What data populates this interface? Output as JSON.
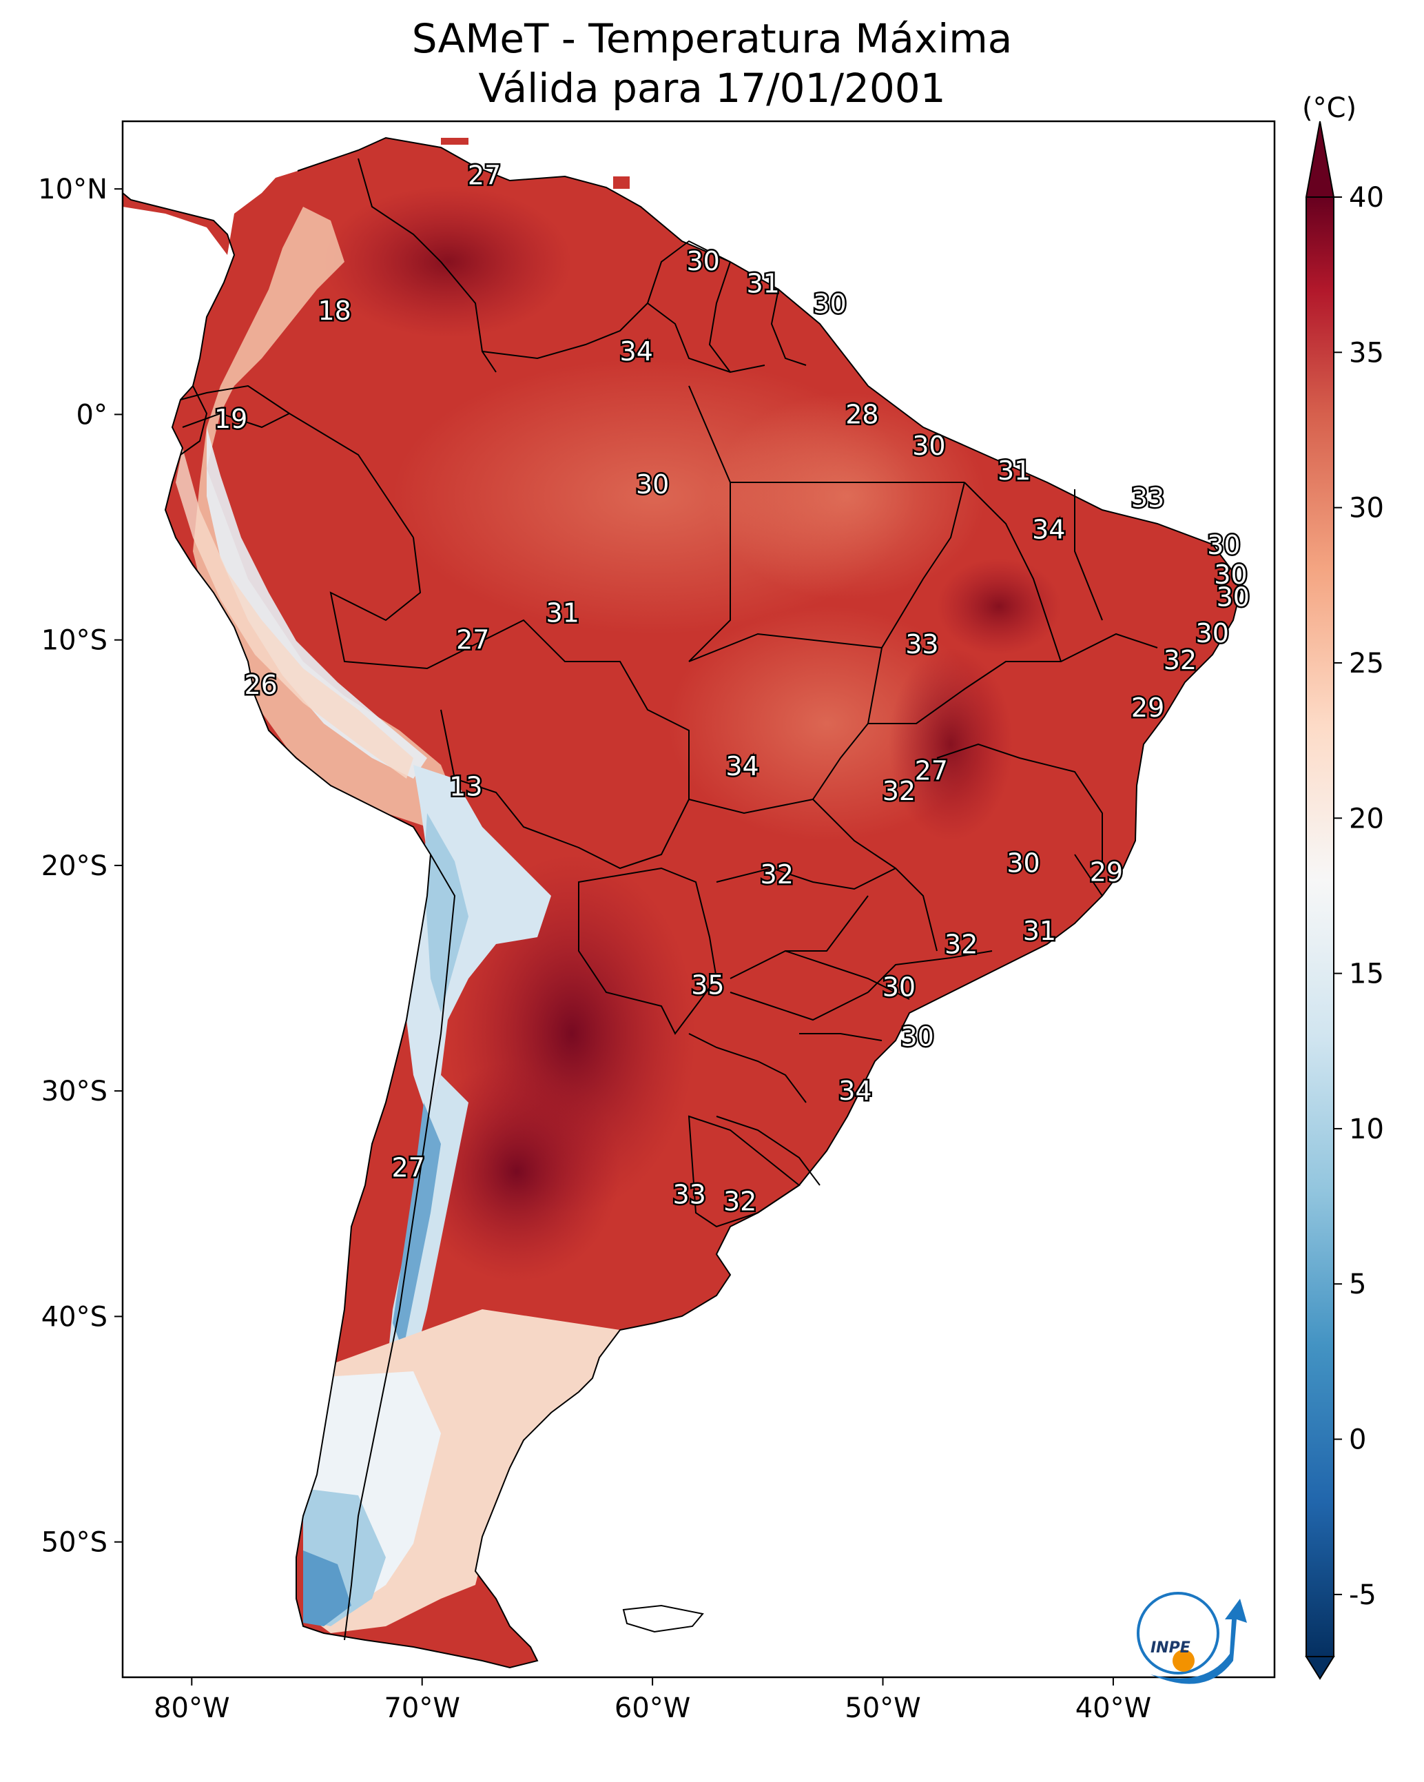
{
  "title": {
    "line1": "SAMeT - Temperatura Máxima",
    "line2": "Válida para 17/01/2001"
  },
  "map": {
    "lon_ticks": [
      "80°W",
      "70°W",
      "60°W",
      "50°W",
      "40°W"
    ],
    "lat_ticks": [
      "10°N",
      "0°",
      "10°S",
      "20°S",
      "30°S",
      "40°S",
      "50°S"
    ],
    "extent": {
      "lon_min": -83,
      "lon_max": -33,
      "lat_min": -56,
      "lat_max": 13
    }
  },
  "colorbar": {
    "unit": "(°C)",
    "ticks": [
      "-5",
      "0",
      "5",
      "10",
      "15",
      "20",
      "25",
      "30",
      "35",
      "40"
    ],
    "vmin": -7,
    "vmax": 40,
    "colors": [
      "#053061",
      "#2166ac",
      "#4393c3",
      "#92c5de",
      "#d1e5f0",
      "#f7f7f7",
      "#fddbc7",
      "#f4a582",
      "#d6604d",
      "#b2182b",
      "#67001f"
    ]
  },
  "stations": [
    {
      "value": "27",
      "lon": -67.3,
      "lat": 10.6
    },
    {
      "value": "18",
      "lon": -73.8,
      "lat": 4.6
    },
    {
      "value": "30",
      "lon": -57.8,
      "lat": 6.8
    },
    {
      "value": "31",
      "lon": -55.2,
      "lat": 5.8
    },
    {
      "value": "30",
      "lon": -52.3,
      "lat": 4.9
    },
    {
      "value": "34",
      "lon": -60.7,
      "lat": 2.8
    },
    {
      "value": "19",
      "lon": -78.3,
      "lat": -0.2
    },
    {
      "value": "28",
      "lon": -50.9,
      "lat": 0.0
    },
    {
      "value": "30",
      "lon": -48.0,
      "lat": -1.4
    },
    {
      "value": "31",
      "lon": -44.3,
      "lat": -2.5
    },
    {
      "value": "30",
      "lon": -60.0,
      "lat": -3.1
    },
    {
      "value": "33",
      "lon": -38.5,
      "lat": -3.7
    },
    {
      "value": "34",
      "lon": -42.8,
      "lat": -5.1
    },
    {
      "value": "30",
      "lon": -35.2,
      "lat": -5.8
    },
    {
      "value": "30",
      "lon": -34.9,
      "lat": -7.1
    },
    {
      "value": "30",
      "lon": -34.8,
      "lat": -8.1
    },
    {
      "value": "31",
      "lon": -63.9,
      "lat": -8.8
    },
    {
      "value": "30",
      "lon": -35.7,
      "lat": -9.7
    },
    {
      "value": "27",
      "lon": -67.8,
      "lat": -10.0
    },
    {
      "value": "33",
      "lon": -48.3,
      "lat": -10.2
    },
    {
      "value": "32",
      "lon": -37.1,
      "lat": -10.9
    },
    {
      "value": "26",
      "lon": -77.0,
      "lat": -12.0
    },
    {
      "value": "29",
      "lon": -38.5,
      "lat": -13.0
    },
    {
      "value": "27",
      "lon": -47.9,
      "lat": -15.8
    },
    {
      "value": "34",
      "lon": -56.1,
      "lat": -15.6
    },
    {
      "value": "32",
      "lon": -49.3,
      "lat": -16.7
    },
    {
      "value": "13",
      "lon": -68.1,
      "lat": -16.5
    },
    {
      "value": "30",
      "lon": -43.9,
      "lat": -19.9
    },
    {
      "value": "29",
      "lon": -40.3,
      "lat": -20.3
    },
    {
      "value": "32",
      "lon": -54.6,
      "lat": -20.4
    },
    {
      "value": "31",
      "lon": -43.2,
      "lat": -22.9
    },
    {
      "value": "32",
      "lon": -46.6,
      "lat": -23.5
    },
    {
      "value": "35",
      "lon": -57.6,
      "lat": -25.3
    },
    {
      "value": "30",
      "lon": -49.3,
      "lat": -25.4
    },
    {
      "value": "30",
      "lon": -48.5,
      "lat": -27.6
    },
    {
      "value": "34",
      "lon": -51.2,
      "lat": -30.0
    },
    {
      "value": "27",
      "lon": -70.6,
      "lat": -33.4
    },
    {
      "value": "33",
      "lon": -58.4,
      "lat": -34.6
    },
    {
      "value": "32",
      "lon": -56.2,
      "lat": -34.9
    }
  ],
  "logo": {
    "text": "INPE"
  }
}
